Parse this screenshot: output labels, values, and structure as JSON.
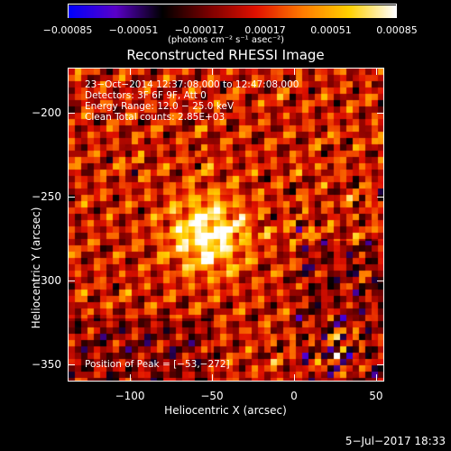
{
  "chart_data": {
    "type": "heatmap",
    "title": "Reconstructed RHESSI Image",
    "xlabel": "Heliocentric X (arcsec)",
    "ylabel": "Heliocentric Y (arcsec)",
    "xlim": [
      -138,
      55
    ],
    "ylim": [
      -360,
      -173
    ],
    "xticks": [
      -100,
      -50,
      0,
      50
    ],
    "xtick_labels": [
      "−100",
      "−50",
      "0",
      "50"
    ],
    "yticks": [
      -200,
      -250,
      -300,
      -350
    ],
    "ytick_labels": [
      "−200",
      "−250",
      "−300",
      "−350"
    ],
    "colorbar": {
      "ticks": [
        -0.00085,
        -0.00051,
        -0.00017,
        0.00017,
        0.00051,
        0.00085
      ],
      "tick_labels": [
        "−0.00085",
        "−0.00051",
        "−0.00017",
        "0.00017",
        "0.00051",
        "0.00085"
      ],
      "units": "(photons cm⁻² s⁻¹ asec⁻²)",
      "range": [
        -0.00085,
        0.00085
      ]
    },
    "peak": [
      -53,
      -272
    ],
    "annotations": {
      "time": "23−Oct−2014 12:37:08.000 to 12:47:08.000",
      "detectors": "Detectors: 3F 6F 9F, Att 0",
      "energy": "Energy Range: 12.0 − 25.0 keV",
      "clean": "Clean    Total counts: 2.85E+03",
      "peak_label": "Position of Peak = [−53,−272]"
    }
  },
  "footer": {
    "timestamp": "5−Jul−2017 18:33"
  },
  "colors": {
    "background": "#000000",
    "cmap": [
      "#0000ff",
      "#5a00c8",
      "#000000",
      "#7a0000",
      "#e01000",
      "#ff7a00",
      "#ffd000",
      "#ffffff"
    ]
  }
}
